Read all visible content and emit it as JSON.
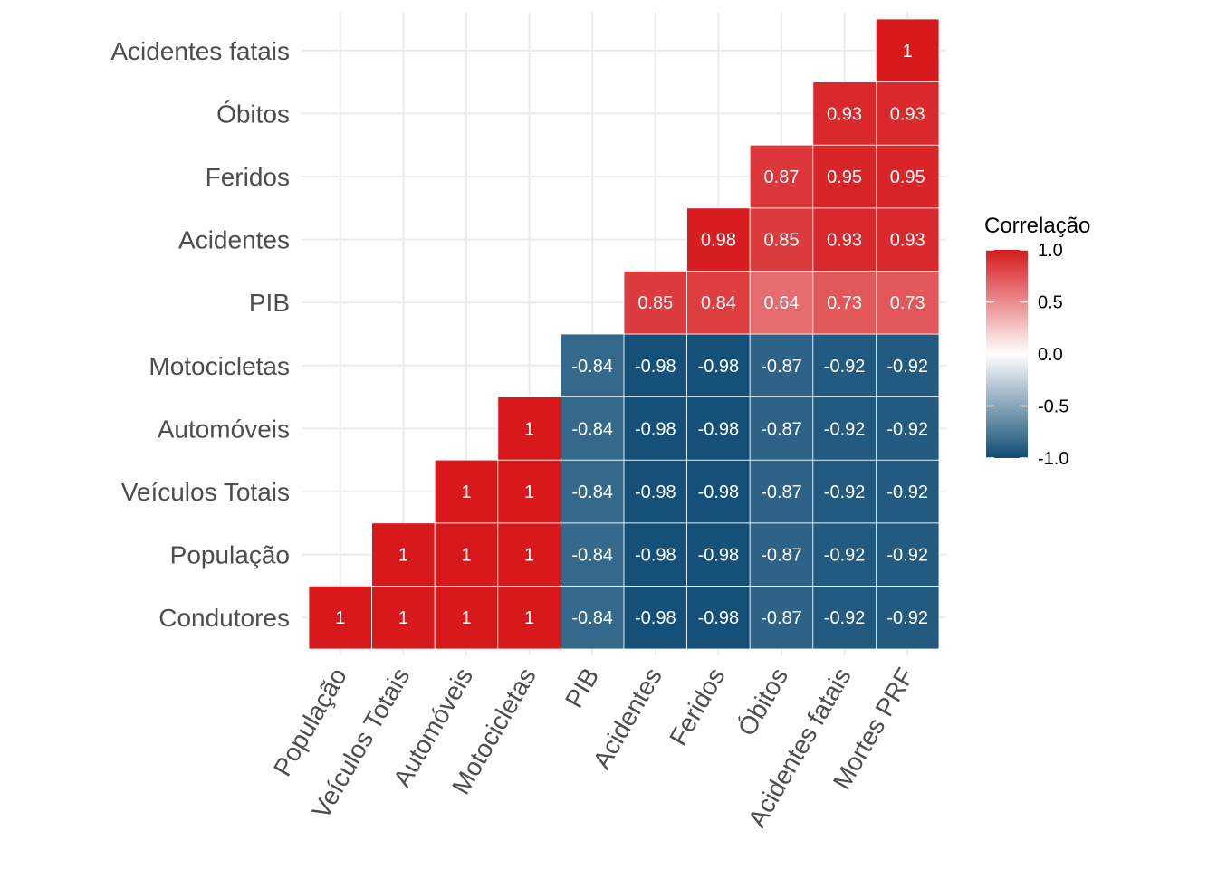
{
  "chart_data": {
    "type": "heatmap",
    "x_categories": [
      "População",
      "Veículos Totais",
      "Automóveis",
      "Motocicletas",
      "PIB",
      "Acidentes",
      "Feridos",
      "Óbitos",
      "Acidentes fatais",
      "Mortes PRF"
    ],
    "y_categories": [
      "Condutores",
      "População",
      "Veículos Totais",
      "Automóveis",
      "Motocicletas",
      "PIB",
      "Acidentes",
      "Feridos",
      "Óbitos",
      "Acidentes fatais"
    ],
    "cells": [
      {
        "x": "População",
        "y": "Condutores",
        "value": 1,
        "label": "1"
      },
      {
        "x": "Veículos Totais",
        "y": "Condutores",
        "value": 1,
        "label": "1"
      },
      {
        "x": "Automóveis",
        "y": "Condutores",
        "value": 1,
        "label": "1"
      },
      {
        "x": "Motocicletas",
        "y": "Condutores",
        "value": 1,
        "label": "1"
      },
      {
        "x": "PIB",
        "y": "Condutores",
        "value": -0.84,
        "label": "-0.84"
      },
      {
        "x": "Acidentes",
        "y": "Condutores",
        "value": -0.98,
        "label": "-0.98"
      },
      {
        "x": "Feridos",
        "y": "Condutores",
        "value": -0.98,
        "label": "-0.98"
      },
      {
        "x": "Óbitos",
        "y": "Condutores",
        "value": -0.87,
        "label": "-0.87"
      },
      {
        "x": "Acidentes fatais",
        "y": "Condutores",
        "value": -0.92,
        "label": "-0.92"
      },
      {
        "x": "Mortes PRF",
        "y": "Condutores",
        "value": -0.92,
        "label": "-0.92"
      },
      {
        "x": "Veículos Totais",
        "y": "População",
        "value": 1,
        "label": "1"
      },
      {
        "x": "Automóveis",
        "y": "População",
        "value": 1,
        "label": "1"
      },
      {
        "x": "Motocicletas",
        "y": "População",
        "value": 1,
        "label": "1"
      },
      {
        "x": "PIB",
        "y": "População",
        "value": -0.84,
        "label": "-0.84"
      },
      {
        "x": "Acidentes",
        "y": "População",
        "value": -0.98,
        "label": "-0.98"
      },
      {
        "x": "Feridos",
        "y": "População",
        "value": -0.98,
        "label": "-0.98"
      },
      {
        "x": "Óbitos",
        "y": "População",
        "value": -0.87,
        "label": "-0.87"
      },
      {
        "x": "Acidentes fatais",
        "y": "População",
        "value": -0.92,
        "label": "-0.92"
      },
      {
        "x": "Mortes PRF",
        "y": "População",
        "value": -0.92,
        "label": "-0.92"
      },
      {
        "x": "Automóveis",
        "y": "Veículos Totais",
        "value": 1,
        "label": "1"
      },
      {
        "x": "Motocicletas",
        "y": "Veículos Totais",
        "value": 1,
        "label": "1"
      },
      {
        "x": "PIB",
        "y": "Veículos Totais",
        "value": -0.84,
        "label": "-0.84"
      },
      {
        "x": "Acidentes",
        "y": "Veículos Totais",
        "value": -0.98,
        "label": "-0.98"
      },
      {
        "x": "Feridos",
        "y": "Veículos Totais",
        "value": -0.98,
        "label": "-0.98"
      },
      {
        "x": "Óbitos",
        "y": "Veículos Totais",
        "value": -0.87,
        "label": "-0.87"
      },
      {
        "x": "Acidentes fatais",
        "y": "Veículos Totais",
        "value": -0.92,
        "label": "-0.92"
      },
      {
        "x": "Mortes PRF",
        "y": "Veículos Totais",
        "value": -0.92,
        "label": "-0.92"
      },
      {
        "x": "Motocicletas",
        "y": "Automóveis",
        "value": 1,
        "label": "1"
      },
      {
        "x": "PIB",
        "y": "Automóveis",
        "value": -0.84,
        "label": "-0.84"
      },
      {
        "x": "Acidentes",
        "y": "Automóveis",
        "value": -0.98,
        "label": "-0.98"
      },
      {
        "x": "Feridos",
        "y": "Automóveis",
        "value": -0.98,
        "label": "-0.98"
      },
      {
        "x": "Óbitos",
        "y": "Automóveis",
        "value": -0.87,
        "label": "-0.87"
      },
      {
        "x": "Acidentes fatais",
        "y": "Automóveis",
        "value": -0.92,
        "label": "-0.92"
      },
      {
        "x": "Mortes PRF",
        "y": "Automóveis",
        "value": -0.92,
        "label": "-0.92"
      },
      {
        "x": "PIB",
        "y": "Motocicletas",
        "value": -0.84,
        "label": "-0.84"
      },
      {
        "x": "Acidentes",
        "y": "Motocicletas",
        "value": -0.98,
        "label": "-0.98"
      },
      {
        "x": "Feridos",
        "y": "Motocicletas",
        "value": -0.98,
        "label": "-0.98"
      },
      {
        "x": "Óbitos",
        "y": "Motocicletas",
        "value": -0.87,
        "label": "-0.87"
      },
      {
        "x": "Acidentes fatais",
        "y": "Motocicletas",
        "value": -0.92,
        "label": "-0.92"
      },
      {
        "x": "Mortes PRF",
        "y": "Motocicletas",
        "value": -0.92,
        "label": "-0.92"
      },
      {
        "x": "Acidentes",
        "y": "PIB",
        "value": 0.85,
        "label": "0.85"
      },
      {
        "x": "Feridos",
        "y": "PIB",
        "value": 0.84,
        "label": "0.84"
      },
      {
        "x": "Óbitos",
        "y": "PIB",
        "value": 0.64,
        "label": "0.64"
      },
      {
        "x": "Acidentes fatais",
        "y": "PIB",
        "value": 0.73,
        "label": "0.73"
      },
      {
        "x": "Mortes PRF",
        "y": "PIB",
        "value": 0.73,
        "label": "0.73"
      },
      {
        "x": "Feridos",
        "y": "Acidentes",
        "value": 0.98,
        "label": "0.98"
      },
      {
        "x": "Óbitos",
        "y": "Acidentes",
        "value": 0.85,
        "label": "0.85"
      },
      {
        "x": "Acidentes fatais",
        "y": "Acidentes",
        "value": 0.93,
        "label": "0.93"
      },
      {
        "x": "Mortes PRF",
        "y": "Acidentes",
        "value": 0.93,
        "label": "0.93"
      },
      {
        "x": "Óbitos",
        "y": "Feridos",
        "value": 0.87,
        "label": "0.87"
      },
      {
        "x": "Acidentes fatais",
        "y": "Feridos",
        "value": 0.95,
        "label": "0.95"
      },
      {
        "x": "Mortes PRF",
        "y": "Feridos",
        "value": 0.95,
        "label": "0.95"
      },
      {
        "x": "Acidentes fatais",
        "y": "Óbitos",
        "value": 0.93,
        "label": "0.93"
      },
      {
        "x": "Mortes PRF",
        "y": "Óbitos",
        "value": 0.93,
        "label": "0.93"
      },
      {
        "x": "Mortes PRF",
        "y": "Acidentes fatais",
        "value": 1,
        "label": "1"
      }
    ],
    "legend": {
      "title": "Correlação",
      "position": "right",
      "ticks": [
        "1.0",
        "0.5",
        "0.0",
        "-0.5",
        "-1.0"
      ],
      "range": [
        -1,
        1
      ]
    },
    "colors": {
      "low": "#0f4c75",
      "mid": "#ffffff",
      "high": "#d7191c",
      "grid": "#ebebeb"
    },
    "grid": true
  }
}
